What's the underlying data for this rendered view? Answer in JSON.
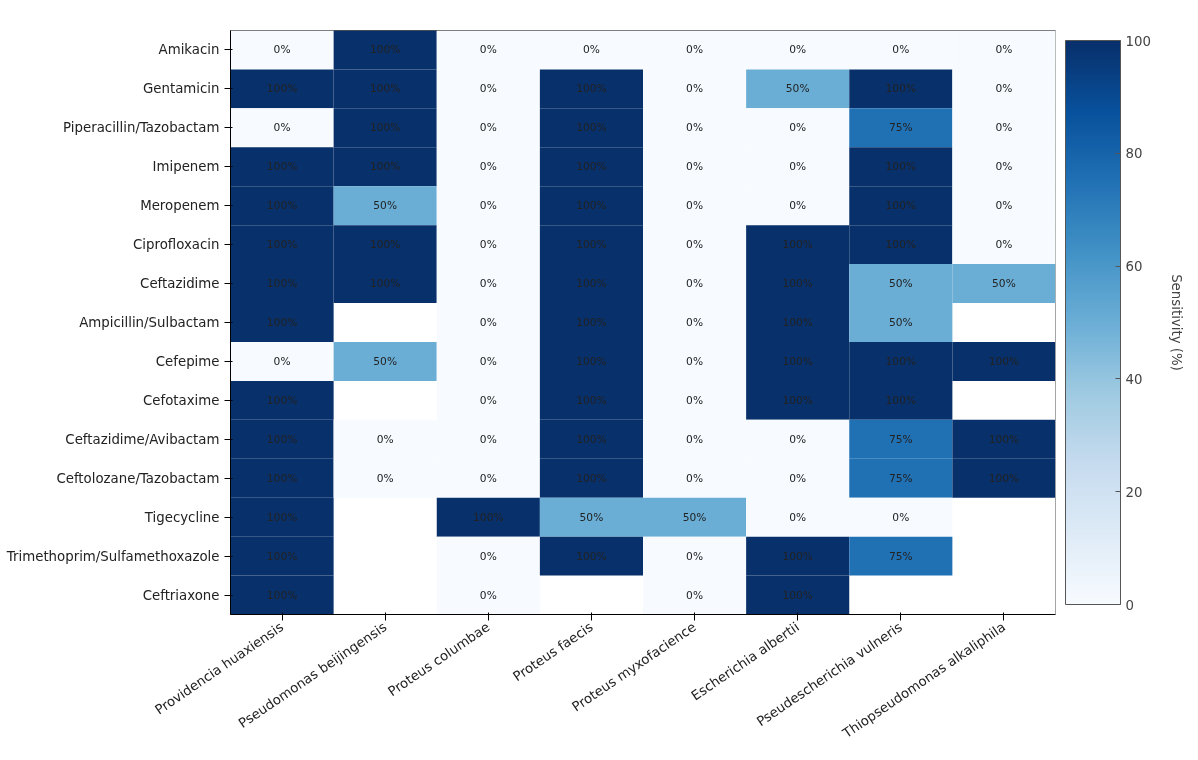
{
  "chart_data": {
    "type": "heatmap",
    "categories": [
      "Providencia huaxiensis",
      "Pseudomonas beijingensis",
      "Proteus columbae",
      "Proteus faecis",
      "Proteus myxofacience",
      "Escherichia albertii",
      "Pseudescherichia vulneris",
      "Thiopseudomonas alkaliphila"
    ],
    "y_categories": [
      "Amikacin",
      "Gentamicin",
      "Piperacillin/Tazobactam",
      "Imipenem",
      "Meropenem",
      "Ciprofloxacin",
      "Ceftazidime",
      "Ampicillin/Sulbactam",
      "Cefepime",
      "Cefotaxime",
      "Ceftazidime/Avibactam",
      "Ceftolozane/Tazobactam",
      "Tigecycline",
      "Trimethoprim/Sulfamethoxazole",
      "Ceftriaxone"
    ],
    "cells": [
      [
        0,
        100,
        0,
        0,
        0,
        0,
        0,
        0
      ],
      [
        100,
        100,
        0,
        100,
        0,
        50,
        100,
        0
      ],
      [
        0,
        100,
        0,
        100,
        0,
        0,
        75,
        0
      ],
      [
        100,
        100,
        0,
        100,
        0,
        0,
        100,
        0
      ],
      [
        100,
        50,
        0,
        100,
        0,
        0,
        100,
        0
      ],
      [
        100,
        100,
        0,
        100,
        0,
        100,
        100,
        0
      ],
      [
        100,
        100,
        0,
        100,
        0,
        100,
        50,
        50
      ],
      [
        100,
        null,
        0,
        100,
        0,
        100,
        50,
        null
      ],
      [
        0,
        50,
        0,
        100,
        0,
        100,
        100,
        100
      ],
      [
        100,
        null,
        0,
        100,
        0,
        100,
        100,
        null
      ],
      [
        100,
        0,
        0,
        100,
        0,
        0,
        75,
        100
      ],
      [
        100,
        0,
        0,
        100,
        0,
        0,
        75,
        100
      ],
      [
        100,
        null,
        100,
        50,
        50,
        0,
        0,
        null
      ],
      [
        100,
        null,
        0,
        100,
        0,
        100,
        75,
        null
      ],
      [
        100,
        null,
        0,
        null,
        0,
        100,
        null,
        null
      ]
    ],
    "cell_labels": [
      [
        "0%",
        "100%",
        "0%",
        "0%",
        "0%",
        "0%",
        "0%",
        "0%"
      ],
      [
        "100%",
        "100%",
        "0%",
        "100%",
        "0%",
        "50%",
        "100%",
        "0%"
      ],
      [
        "0%",
        "100%",
        "0%",
        "100%",
        "0%",
        "0%",
        "75%",
        "0%"
      ],
      [
        "100%",
        "100%",
        "0%",
        "100%",
        "0%",
        "0%",
        "100%",
        "0%"
      ],
      [
        "100%",
        "50%",
        "0%",
        "100%",
        "0%",
        "0%",
        "100%",
        "0%"
      ],
      [
        "100%",
        "100%",
        "0%",
        "100%",
        "0%",
        "100%",
        "100%",
        "0%"
      ],
      [
        "100%",
        "100%",
        "0%",
        "100%",
        "0%",
        "100%",
        "50%",
        "50%"
      ],
      [
        "100%",
        null,
        "0%",
        "100%",
        "0%",
        "100%",
        "50%",
        null
      ],
      [
        "0%",
        "50%",
        "0%",
        "100%",
        "0%",
        "100%",
        "100%",
        "100%"
      ],
      [
        "100%",
        null,
        "0%",
        "100%",
        "0%",
        "100%",
        "100%",
        null
      ],
      [
        "100%",
        "0%",
        "0%",
        "100%",
        "0%",
        "0%",
        "75%",
        "100%"
      ],
      [
        "100%",
        "0%",
        "0%",
        "100%",
        "0%",
        "0%",
        "75%",
        "100%"
      ],
      [
        "100%",
        null,
        "100%",
        "50%",
        "50%",
        "0%",
        "0%",
        null
      ],
      [
        "100%",
        null,
        "0%",
        "100%",
        "0%",
        "100%",
        "75%",
        null
      ],
      [
        "100%",
        null,
        "0%",
        null,
        "0%",
        "100%",
        null,
        null
      ]
    ],
    "clabel": "Sensitivity (%)",
    "clim": [
      0,
      100
    ],
    "cticks": [
      0,
      20,
      40,
      60,
      80,
      100
    ]
  }
}
